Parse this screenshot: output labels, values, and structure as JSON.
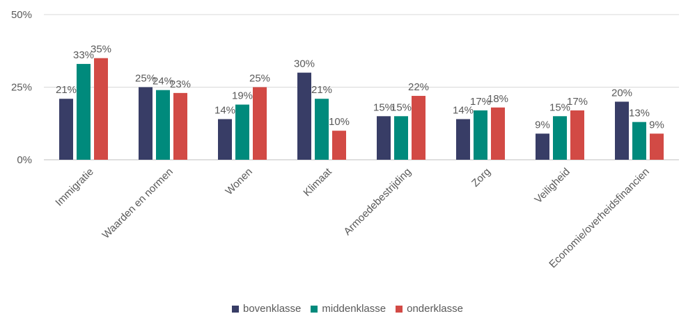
{
  "chart_data": {
    "type": "bar",
    "categories": [
      "Immigratie",
      "Waarden en normen",
      "Wonen",
      "Klimaat",
      "Armoedebestrijding",
      "Zorg",
      "Veiligheid",
      "Economie/overheidsfinancien"
    ],
    "series": [
      {
        "name": "bovenklasse",
        "color": "#383d66",
        "values": [
          21,
          25,
          14,
          30,
          15,
          14,
          9,
          20
        ]
      },
      {
        "name": "middenklasse",
        "color": "#008a7c",
        "values": [
          33,
          24,
          19,
          21,
          15,
          17,
          15,
          13
        ]
      },
      {
        "name": "onderklasse",
        "color": "#d24a45",
        "values": [
          35,
          23,
          25,
          10,
          22,
          18,
          17,
          9
        ]
      }
    ],
    "ylim": [
      0,
      50
    ],
    "yticks": [
      0,
      25,
      50
    ],
    "ytick_labels": [
      "0%",
      "25%",
      "50%"
    ],
    "value_suffix": "%",
    "grid": true,
    "legend_position": "bottom"
  }
}
